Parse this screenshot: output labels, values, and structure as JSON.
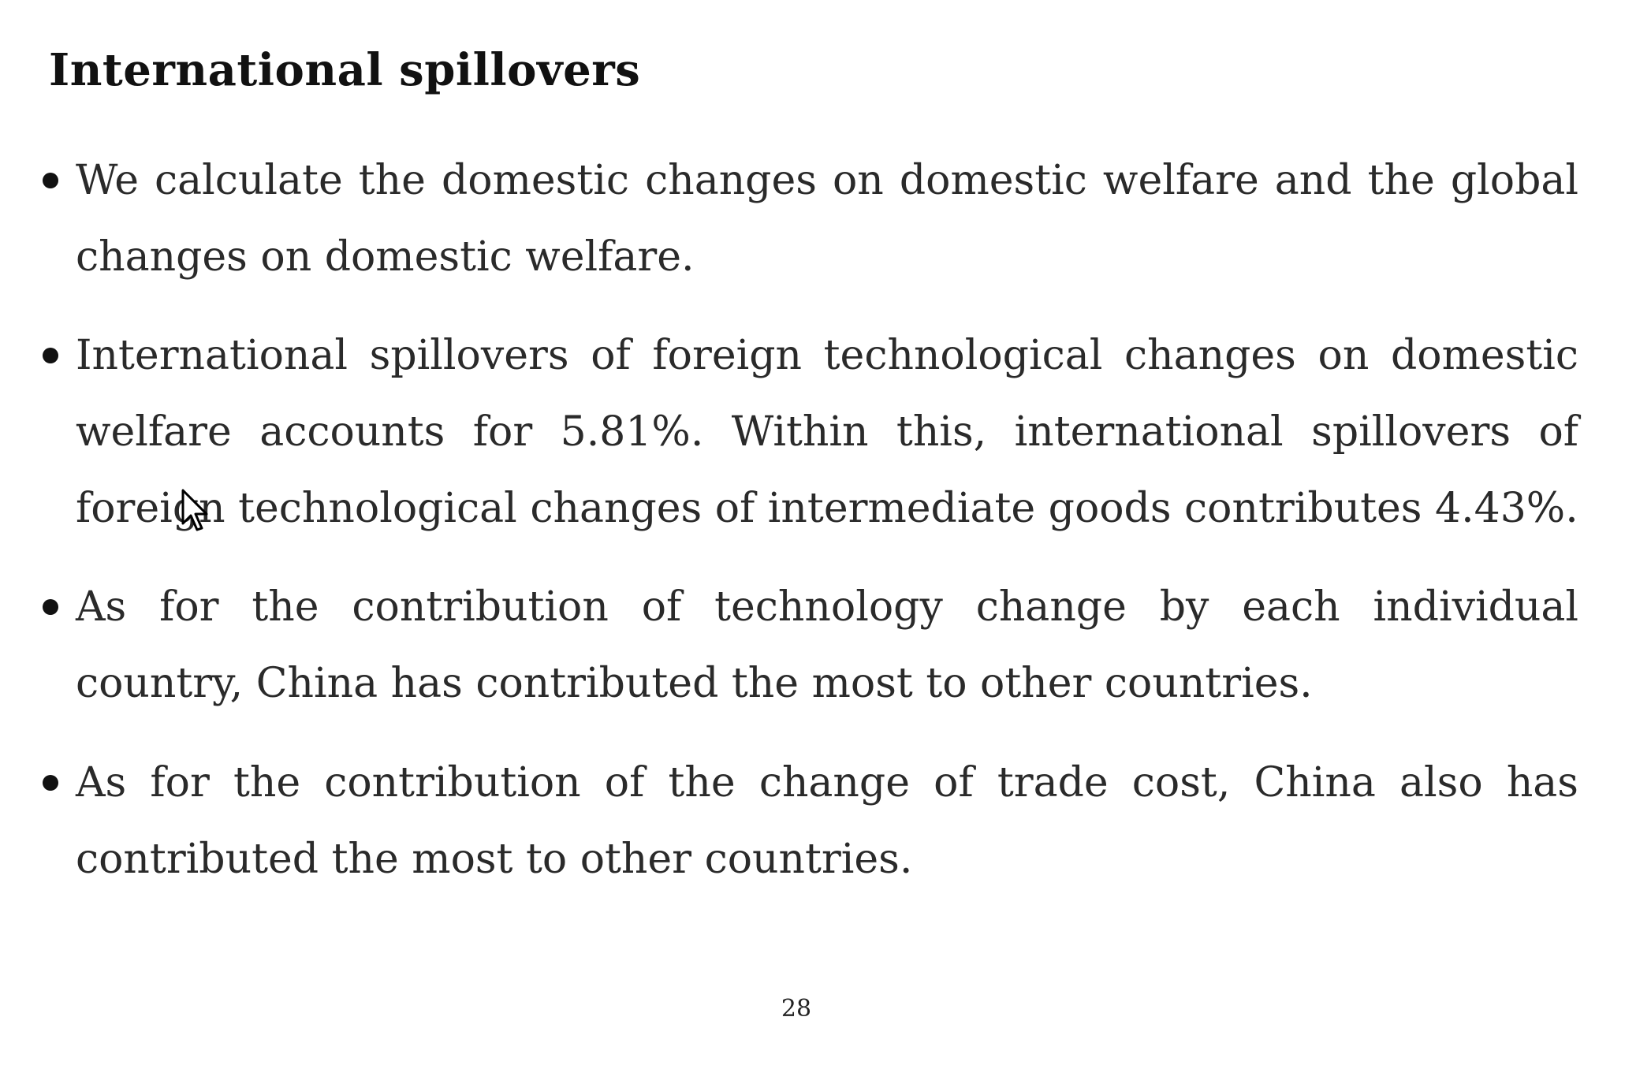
{
  "slide": {
    "title": "International spillovers",
    "bullets": [
      {
        "text": "We calculate the domestic changes on domestic welfare and the global changes on domestic welfare."
      },
      {
        "text": "International spillovers of foreign technological changes on domestic welfare accounts for 5.81%.  Within this, international spillovers of foreign technological changes of intermediate goods contributes 4.43%."
      },
      {
        "text": "As for the contribution of technology change by each individual country, China has contributed the most to other countries."
      },
      {
        "text": "As for the contribution of the change of trade cost, China also has contributed the most to other countries."
      }
    ],
    "page_number": "28"
  },
  "icons": {
    "bullet": "bullet-dot-icon",
    "cursor": "mouse-pointer-icon"
  },
  "colors": {
    "text": "#2a2a2a",
    "title": "#111111",
    "background": "#ffffff"
  }
}
